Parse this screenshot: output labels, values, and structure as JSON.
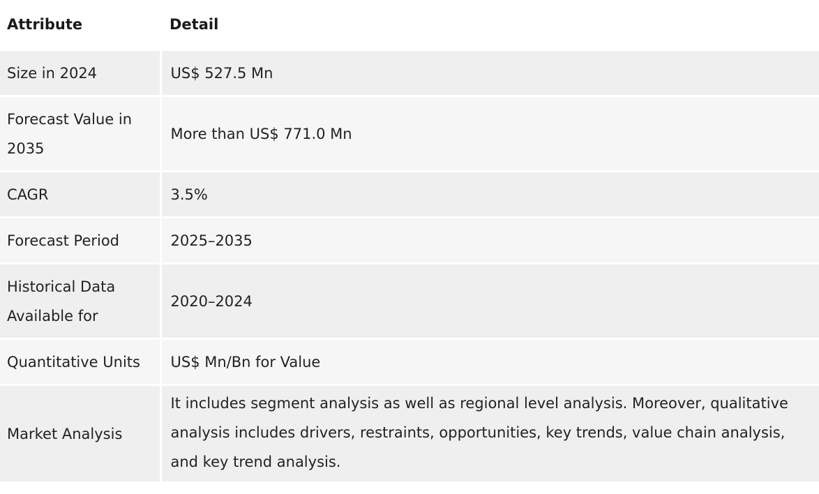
{
  "table": {
    "headers": {
      "attribute": "Attribute",
      "detail": "Detail"
    },
    "rows": [
      {
        "attribute": "Size in 2024",
        "detail": "US$ 527.5 Mn"
      },
      {
        "attribute": "Forecast Value in 2035",
        "detail": "More than US$ 771.0 Mn"
      },
      {
        "attribute": "CAGR",
        "detail": "3.5%"
      },
      {
        "attribute": "Forecast Period",
        "detail": "2025–2035"
      },
      {
        "attribute": "Historical Data Available for",
        "detail": "2020–2024"
      },
      {
        "attribute": "Quantitative Units",
        "detail": "US$ Mn/Bn for Value"
      },
      {
        "attribute": "Market Analysis",
        "detail": "It includes segment analysis as well as regional level analysis. Moreover, qualitative analysis includes drivers, restraints, opportunities, key trends, value chain analysis, and key trend analysis."
      }
    ]
  }
}
